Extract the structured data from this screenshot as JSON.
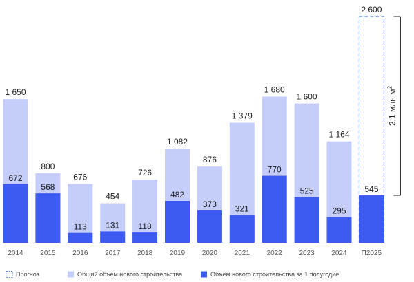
{
  "chart_data": {
    "type": "bar",
    "stacked_overlay": true,
    "categories": [
      "2014",
      "2015",
      "2016",
      "2017",
      "2018",
      "2019",
      "2020",
      "2021",
      "2022",
      "2023",
      "2024",
      "П2025"
    ],
    "series": [
      {
        "name": "Общий объем нового строительства",
        "color": "#c5cefb",
        "values": [
          1650,
          800,
          676,
          454,
          726,
          1082,
          876,
          1379,
          1680,
          1600,
          1164,
          2600
        ],
        "labels": [
          "1 650",
          "800",
          "676",
          "454",
          "726",
          "1 082",
          "876",
          "1 379",
          "1 680",
          "1 600",
          "1 164",
          "2 600"
        ]
      },
      {
        "name": "Объем нового строительства за 1 полугодие",
        "color": "#3d5af1",
        "values": [
          672,
          568,
          113,
          131,
          118,
          482,
          373,
          321,
          770,
          525,
          295,
          545
        ],
        "labels": [
          "672",
          "568",
          "113",
          "131",
          "118",
          "482",
          "373",
          "321",
          "770",
          "525",
          "295",
          "545"
        ]
      }
    ],
    "forecast_index": 11,
    "forecast_legend": "Прогноз",
    "forecast_color": "#5b8ce0",
    "bracket_label": "2,1 млн м",
    "bracket_superscript": "2",
    "ylim": [
      0,
      2600
    ],
    "grid": false,
    "legend_position": "bottom"
  }
}
